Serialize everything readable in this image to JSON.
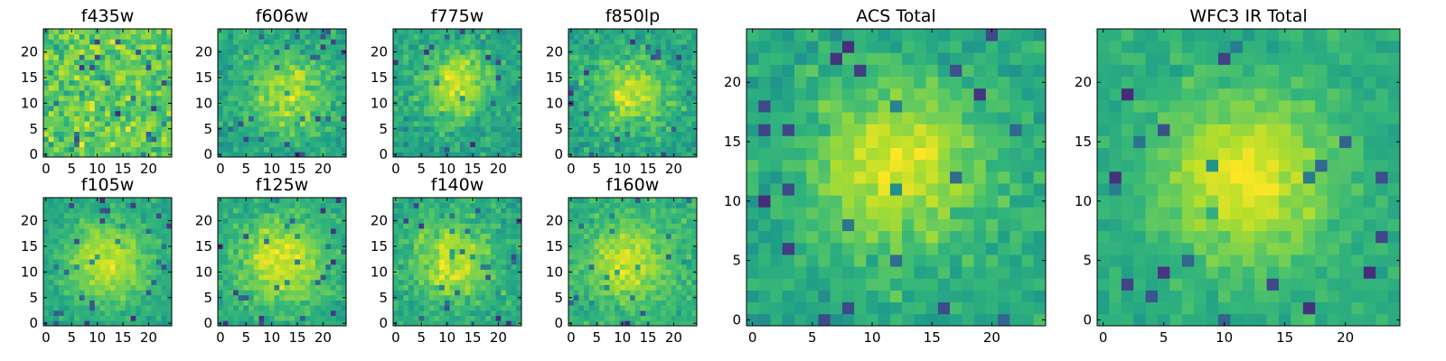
{
  "chart_data": [
    {
      "type": "heatmap",
      "title": "f435w",
      "xticks": [
        "0",
        "5",
        "10",
        "15",
        "20"
      ],
      "yticks": [
        "0",
        "5",
        "10",
        "15",
        "20"
      ],
      "xlim": [
        -0.5,
        24.5
      ],
      "ylim": [
        -0.5,
        24.5
      ],
      "grid_size": 25,
      "colormap": "viridis",
      "peak": [
        12,
        12
      ],
      "spread": 0,
      "noise": 1.0,
      "seed": 11
    },
    {
      "type": "heatmap",
      "title": "f606w",
      "xticks": [
        "0",
        "5",
        "10",
        "15",
        "20"
      ],
      "yticks": [
        "0",
        "5",
        "10",
        "15",
        "20"
      ],
      "xlim": [
        -0.5,
        24.5
      ],
      "ylim": [
        -0.5,
        24.5
      ],
      "grid_size": 25,
      "colormap": "viridis",
      "peak": [
        13,
        12
      ],
      "spread": 5,
      "noise": 0.9,
      "seed": 23
    },
    {
      "type": "heatmap",
      "title": "f775w",
      "xticks": [
        "0",
        "5",
        "10",
        "15",
        "20"
      ],
      "yticks": [
        "0",
        "5",
        "10",
        "15",
        "20"
      ],
      "xlim": [
        -0.5,
        24.5
      ],
      "ylim": [
        -0.5,
        24.5
      ],
      "grid_size": 25,
      "colormap": "viridis",
      "peak": [
        12,
        14
      ],
      "spread": 5,
      "noise": 0.8,
      "seed": 37
    },
    {
      "type": "heatmap",
      "title": "f850lp",
      "xticks": [
        "0",
        "5",
        "10",
        "15",
        "20"
      ],
      "yticks": [
        "0",
        "5",
        "10",
        "15",
        "20"
      ],
      "xlim": [
        -0.5,
        24.5
      ],
      "ylim": [
        -0.5,
        24.5
      ],
      "grid_size": 25,
      "colormap": "viridis",
      "peak": [
        12,
        12
      ],
      "spread": 5,
      "noise": 0.85,
      "seed": 41
    },
    {
      "type": "heatmap",
      "title": "f105w",
      "xticks": [
        "0",
        "5",
        "10",
        "15",
        "20"
      ],
      "yticks": [
        "0",
        "5",
        "10",
        "15",
        "20"
      ],
      "xlim": [
        -0.5,
        24.5
      ],
      "ylim": [
        -0.5,
        24.5
      ],
      "grid_size": 25,
      "colormap": "viridis",
      "peak": [
        12,
        12
      ],
      "spread": 6,
      "noise": 0.55,
      "seed": 53
    },
    {
      "type": "heatmap",
      "title": "f125w",
      "xticks": [
        "0",
        "5",
        "10",
        "15",
        "20"
      ],
      "yticks": [
        "0",
        "5",
        "10",
        "15",
        "20"
      ],
      "xlim": [
        -0.5,
        24.5
      ],
      "ylim": [
        -0.5,
        24.5
      ],
      "grid_size": 25,
      "colormap": "viridis",
      "peak": [
        12,
        12
      ],
      "spread": 6,
      "noise": 0.6,
      "seed": 67
    },
    {
      "type": "heatmap",
      "title": "f140w",
      "xticks": [
        "0",
        "5",
        "10",
        "15",
        "20"
      ],
      "yticks": [
        "0",
        "5",
        "10",
        "15",
        "20"
      ],
      "xlim": [
        -0.5,
        24.5
      ],
      "ylim": [
        -0.5,
        24.5
      ],
      "grid_size": 25,
      "colormap": "viridis",
      "peak": [
        11,
        12
      ],
      "spread": 5,
      "noise": 0.7,
      "seed": 71
    },
    {
      "type": "heatmap",
      "title": "f160w",
      "xticks": [
        "0",
        "5",
        "10",
        "15",
        "20"
      ],
      "yticks": [
        "0",
        "5",
        "10",
        "15",
        "20"
      ],
      "xlim": [
        -0.5,
        24.5
      ],
      "ylim": [
        -0.5,
        24.5
      ],
      "grid_size": 25,
      "colormap": "viridis",
      "peak": [
        11,
        12
      ],
      "spread": 5,
      "noise": 0.7,
      "seed": 83
    },
    {
      "type": "heatmap",
      "title": "ACS Total",
      "xticks": [
        "0",
        "5",
        "10",
        "15",
        "20"
      ],
      "yticks": [
        "0",
        "5",
        "10",
        "15",
        "20"
      ],
      "xlim": [
        -0.5,
        24.5
      ],
      "ylim": [
        -0.5,
        24.5
      ],
      "grid_size": 25,
      "colormap": "viridis",
      "peak": [
        12,
        13
      ],
      "spread": 5,
      "noise": 0.6,
      "seed": 97
    },
    {
      "type": "heatmap",
      "title": "WFC3 IR Total",
      "xticks": [
        "0",
        "5",
        "10",
        "15",
        "20"
      ],
      "yticks": [
        "0",
        "5",
        "10",
        "15",
        "20"
      ],
      "xlim": [
        -0.5,
        24.5
      ],
      "ylim": [
        -0.5,
        24.5
      ],
      "grid_size": 25,
      "colormap": "viridis",
      "peak": [
        12,
        12
      ],
      "spread": 5,
      "noise": 0.45,
      "seed": 101
    }
  ],
  "colors": {
    "viridis_stops": [
      "#440154",
      "#482878",
      "#3e4989",
      "#31688e",
      "#26828e",
      "#1f9e89",
      "#35b779",
      "#6ece58",
      "#b5de2b",
      "#fde725"
    ]
  }
}
